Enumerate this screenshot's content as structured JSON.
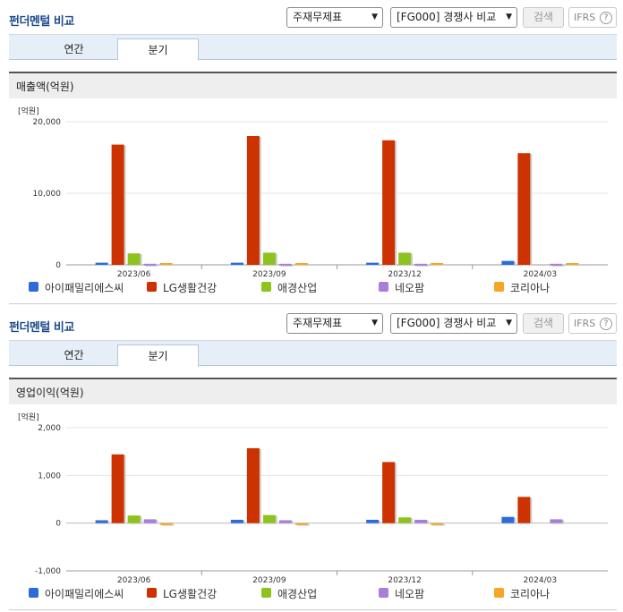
{
  "panels": [
    {
      "title": "펀더멘털 비교",
      "statement_select": "주재무제표",
      "compare_select": "[FG000] 경쟁사 비교",
      "search_label": "검색",
      "ifrs_label": "IFRS",
      "help_symbol": "?",
      "tabs": {
        "yearly": "연간",
        "quarterly": "분기"
      },
      "section_title": "매출액(억원)",
      "unit_label": "[억원]",
      "legend": [
        "아이패밀리에스씨",
        "LG생활건강",
        "애경산업",
        "네오팜",
        "코리아나"
      ]
    },
    {
      "title": "펀더멘털 비교",
      "statement_select": "주재무제표",
      "compare_select": "[FG000] 경쟁사 비교",
      "search_label": "검색",
      "ifrs_label": "IFRS",
      "help_symbol": "?",
      "tabs": {
        "yearly": "연간",
        "quarterly": "분기"
      },
      "section_title": "영업이익(억원)",
      "unit_label": "[억원]",
      "legend": [
        "아이패밀리에스씨",
        "LG생활건강",
        "애경산업",
        "네오팜",
        "코리아나"
      ]
    }
  ],
  "colors": {
    "아이패밀리에스씨": "#2d6bd9",
    "LG생활건강": "#cc3300",
    "애경산업": "#8dc21f",
    "네오팜": "#a77ed9",
    "코리아나": "#f5a623"
  },
  "chart_data": [
    {
      "type": "bar",
      "title": "매출액(억원)",
      "ylabel": "[억원]",
      "categories": [
        "2023/06",
        "2023/09",
        "2023/12",
        "2024/03"
      ],
      "ylim": [
        0,
        20000
      ],
      "yticks": [
        0,
        10000,
        20000
      ],
      "ytick_labels": [
        "0",
        "10,000",
        "20,000"
      ],
      "series": [
        {
          "name": "아이패밀리에스씨",
          "values": [
            300,
            300,
            300,
            550
          ]
        },
        {
          "name": "LG생활건강",
          "values": [
            16800,
            18000,
            17400,
            15600
          ]
        },
        {
          "name": "애경산업",
          "values": [
            1600,
            1700,
            1700,
            null
          ]
        },
        {
          "name": "네오팜",
          "values": [
            150,
            150,
            150,
            150
          ]
        },
        {
          "name": "코리아나",
          "values": [
            250,
            250,
            250,
            250
          ]
        }
      ]
    },
    {
      "type": "bar",
      "title": "영업이익(억원)",
      "ylabel": "[억원]",
      "categories": [
        "2023/06",
        "2023/09",
        "2023/12",
        "2024/03"
      ],
      "ylim": [
        -1000,
        2000
      ],
      "yticks": [
        -1000,
        0,
        1000,
        2000
      ],
      "ytick_labels": [
        "-1,000",
        "0",
        "1,000",
        "2,000"
      ],
      "series": [
        {
          "name": "아이패밀리에스씨",
          "values": [
            60,
            70,
            70,
            130
          ]
        },
        {
          "name": "LG생활건강",
          "values": [
            1440,
            1570,
            1280,
            550
          ]
        },
        {
          "name": "애경산업",
          "values": [
            160,
            170,
            120,
            null
          ]
        },
        {
          "name": "네오팜",
          "values": [
            80,
            60,
            70,
            80
          ]
        },
        {
          "name": "코리아나",
          "values": [
            -5,
            -30,
            -30,
            null
          ]
        }
      ]
    }
  ]
}
